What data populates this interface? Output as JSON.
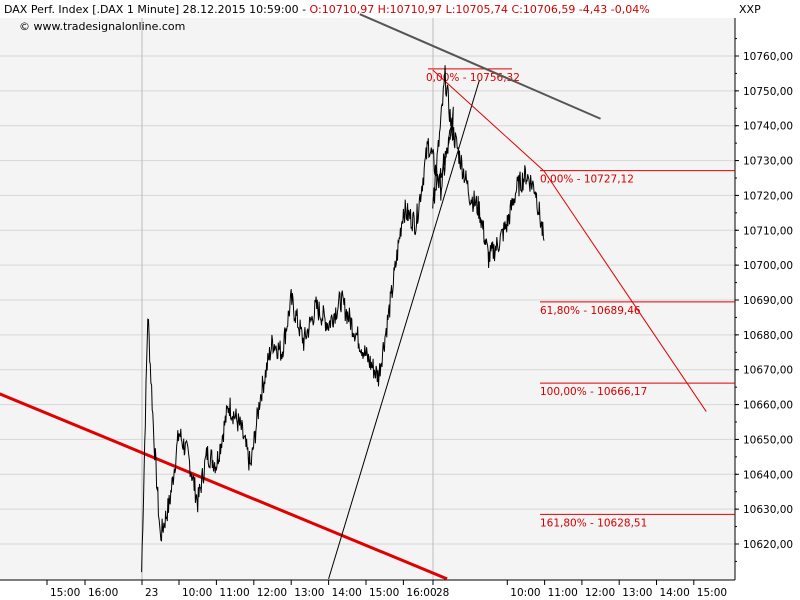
{
  "header": {
    "instrument": "DAX Perf. Index [.DAX  1 Minute] 28.12.2015 10:59:00 - ",
    "ohlc": "O:10710,97 H:10710,97 L:10705,74 C:10706,59 -4,43 -0,04%",
    "source": "© www.tradesignalonline.com",
    "axis_label": "XXP"
  },
  "colors": {
    "background": "#f4f4f4",
    "grid": "#d6d6d6",
    "price": "#000000",
    "fib": "#e00000",
    "trend_red": "#e00000",
    "trend_gray": "#555555",
    "header_red": "#d40000"
  },
  "chart_data": {
    "type": "line",
    "title": "DAX Perf. Index [.DAX  1 Minute] 28.12.2015 10:59:00",
    "xlabel": "",
    "ylabel": "",
    "ylim": [
      10610,
      10770
    ],
    "y_ticks": [
      10620,
      10630,
      10640,
      10650,
      10660,
      10670,
      10680,
      10690,
      10700,
      10710,
      10720,
      10730,
      10740,
      10750,
      10760
    ],
    "y_tick_labels": [
      "10620,00",
      "10630,00",
      "10640,00",
      "10650,00",
      "10660,00",
      "10670,00",
      "10680,00",
      "10690,00",
      "10700,00",
      "10710,00",
      "10720,00",
      "10730,00",
      "10740,00",
      "10750,00",
      "10760,00"
    ],
    "x_tick_labels": [
      "15:00",
      "16:00",
      "23",
      "10:00",
      "11:00",
      "12:00",
      "13:00",
      "14:00",
      "15:00",
      "16:00",
      "28",
      "10:00",
      "11:00",
      "12:00",
      "13:00",
      "14:00",
      "15:00"
    ],
    "x_tick_hours": [
      15,
      16,
      "23",
      10,
      11,
      12,
      13,
      14,
      15,
      16,
      "28",
      10,
      11,
      12,
      13,
      14,
      15
    ],
    "day_separators": [
      "23",
      "28"
    ],
    "series": [
      {
        "values": [
          [
            "23 09:00",
            10612
          ],
          [
            "23 09:10",
            10686
          ],
          [
            "23 09:20",
            10650
          ],
          [
            "23 09:30",
            10622
          ],
          [
            "23 09:45",
            10632
          ],
          [
            "23 10:00",
            10652
          ],
          [
            "23 10:15",
            10645
          ],
          [
            "23 10:30",
            10632
          ],
          [
            "23 10:45",
            10646
          ],
          [
            "23 11:00",
            10643
          ],
          [
            "23 11:20",
            10660
          ],
          [
            "23 11:40",
            10653
          ],
          [
            "23 11:55",
            10642
          ],
          [
            "23 12:10",
            10662
          ],
          [
            "23 12:30",
            10678
          ],
          [
            "23 12:45",
            10675
          ],
          [
            "23 13:00",
            10690
          ],
          [
            "23 13:20",
            10678
          ],
          [
            "23 13:40",
            10688
          ],
          [
            "23 14:00",
            10683
          ],
          [
            "23 14:20",
            10690
          ],
          [
            "23 14:40",
            10682
          ],
          [
            "23 15:00",
            10674
          ],
          [
            "23 15:20",
            10668
          ],
          [
            "23 15:40",
            10690
          ],
          [
            "23 16:00",
            10716
          ],
          [
            "23 16:20",
            10712
          ],
          [
            "23 16:40",
            10735
          ],
          [
            "23 17:00",
            10722
          ],
          [
            "23 17:20",
            10742
          ],
          [
            "28 08:00",
            10718
          ],
          [
            "28 08:10",
            10735
          ],
          [
            "28 08:20",
            10754
          ],
          [
            "28 08:30",
            10740
          ],
          [
            "28 08:45",
            10730
          ],
          [
            "28 09:00",
            10720
          ],
          [
            "28 09:15",
            10716
          ],
          [
            "28 09:30",
            10702
          ],
          [
            "28 09:45",
            10706
          ],
          [
            "28 10:00",
            10712
          ],
          [
            "28 10:15",
            10722
          ],
          [
            "28 10:30",
            10726
          ],
          [
            "28 10:45",
            10722
          ],
          [
            "28 10:59",
            10707
          ]
        ]
      }
    ],
    "fibonacci": [
      {
        "label": "0,00% - 10756,32",
        "value": 10756.32
      },
      {
        "label": "0,00% - 10727,12",
        "value": 10727.12
      },
      {
        "label": "61,80% - 10689,46",
        "value": 10689.46
      },
      {
        "label": "100,00% - 10666,17",
        "value": 10666.17
      },
      {
        "label": "161,80% - 10628,51",
        "value": 10628.51
      }
    ],
    "trendlines": [
      {
        "color": "red",
        "from": [
          "22 10:00",
          10680
        ],
        "to": [
          "23 17:10",
          10610
        ]
      },
      {
        "color": "gray",
        "from": [
          "23 14:50",
          10772
        ],
        "to": [
          "28 12:30",
          10742
        ]
      },
      {
        "color": "thin-black",
        "from": [
          "23 14:00",
          10610
        ],
        "to": [
          "28 09:15",
          10753
        ]
      },
      {
        "color": "fib-red",
        "from": [
          "28 08:00",
          10756
        ],
        "to": [
          "28 10:59",
          10727
        ]
      },
      {
        "color": "fib-red",
        "from": [
          "28 10:59",
          10727
        ],
        "to": [
          "28 15:20",
          10658
        ]
      }
    ]
  }
}
